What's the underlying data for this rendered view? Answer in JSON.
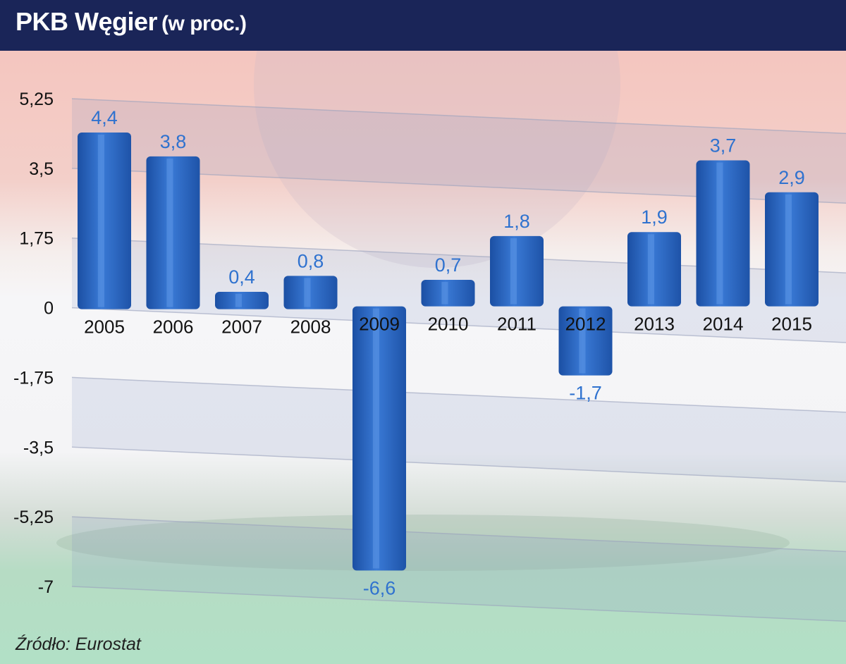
{
  "title": "PKB Węgier",
  "subtitle": "(w proc.)",
  "source": "Źródło: Eurostat",
  "colors": {
    "header": "#1a2558",
    "bar": "#2d68c4",
    "label": "#2f72cf"
  },
  "chart_data": {
    "type": "bar",
    "categories": [
      "2005",
      "2006",
      "2007",
      "2008",
      "2009",
      "2010",
      "2011",
      "2012",
      "2013",
      "2014",
      "2015"
    ],
    "values": [
      4.4,
      3.8,
      0.4,
      0.8,
      -6.6,
      0.7,
      1.8,
      -1.7,
      1.9,
      3.7,
      2.9
    ],
    "value_labels": [
      "4,4",
      "3,8",
      "0,4",
      "0,8",
      "-6,6",
      "0,7",
      "1,8",
      "-1,7",
      "1,9",
      "3,7",
      "2,9"
    ],
    "yticks": [
      5.25,
      3.5,
      1.75,
      0,
      -1.75,
      -3.5,
      -5.25,
      -7
    ],
    "ytick_labels": [
      "5,25",
      "3,5",
      "1,75",
      "0",
      "-1,75",
      "-3,5",
      "-5,25",
      "-7"
    ],
    "ylim": [
      -7,
      5.25
    ],
    "title": "PKB Węgier (w proc.)",
    "xlabel": "",
    "ylabel": "",
    "grid": true,
    "legend": "none"
  }
}
